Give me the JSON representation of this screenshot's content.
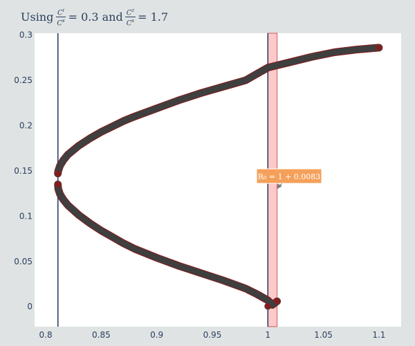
{
  "title_parts": {
    "prefix": "Using",
    "frac1_num": "C",
    "frac1_num_sup": "i",
    "frac1_den": "C",
    "frac1_den_sup": "s",
    "mid": "= 0.3 and",
    "frac2_num": "C",
    "frac2_num_sup": "z",
    "frac2_den": "C",
    "frac2_den_sup": "s",
    "suffix": "= 1.7"
  },
  "chart_data": {
    "type": "scatter",
    "title": "Using Ci/Cs = 0.3 and Cz/Cs = 1.7",
    "xlim": [
      0.79,
      1.12
    ],
    "ylim": [
      -0.022,
      0.302
    ],
    "x_ticks": [
      0.8,
      0.85,
      0.9,
      0.95,
      1,
      1.05,
      1.1
    ],
    "x_tick_labels": [
      "0.8",
      "0.85",
      "0.9",
      "0.95",
      "1",
      "1.05",
      "1.1"
    ],
    "y_ticks": [
      0,
      0.05,
      0.1,
      0.15,
      0.2,
      0.25,
      0.3
    ],
    "y_tick_labels": [
      "0",
      "0.05",
      "0.1",
      "0.15",
      "0.2",
      "0.25",
      "0.3"
    ],
    "grid": false,
    "vertical_lines": [
      {
        "x": 0.811,
        "color": "#2a3f5f"
      },
      {
        "x": 1.0,
        "color": "#2a3f5f"
      }
    ],
    "shaded_band": {
      "x0": 1.0,
      "x1": 1.0083,
      "fill": "#ffc9c9",
      "stroke": "#c85a5a"
    },
    "series": [
      {
        "x": [
          0.811,
          0.8113,
          0.813,
          0.816,
          0.82,
          0.83,
          0.84,
          0.85,
          0.86,
          0.87,
          0.88,
          0.9,
          0.92,
          0.94,
          0.96,
          0.98,
          1.0,
          1.02,
          1.04,
          1.06,
          1.08,
          1.1
        ],
        "y": [
          0.147,
          0.15,
          0.156,
          0.162,
          0.168,
          0.178,
          0.186,
          0.193,
          0.199,
          0.205,
          0.21,
          0.219,
          0.228,
          0.236,
          0.243,
          0.25,
          0.264,
          0.27,
          0.276,
          0.281,
          0.284,
          0.286
        ],
        "color": "#3f3f3f"
      },
      {
        "x": [
          0.811,
          0.8113,
          0.813,
          0.816,
          0.82,
          0.83,
          0.84,
          0.85,
          0.86,
          0.87,
          0.88,
          0.9,
          0.92,
          0.94,
          0.96,
          0.98,
          0.99,
          1.0,
          1.004,
          1.0083
        ],
        "y": [
          0.135,
          0.13,
          0.124,
          0.118,
          0.112,
          0.101,
          0.092,
          0.084,
          0.077,
          0.07,
          0.064,
          0.054,
          0.045,
          0.037,
          0.029,
          0.02,
          0.014,
          0.007,
          0.002,
          0.006
        ],
        "color": "#3f3f3f"
      }
    ],
    "marker_color": "#8b1a1a",
    "highlight_points": [
      [
        0.811,
        0.147
      ],
      [
        0.811,
        0.135
      ],
      [
        1.1,
        0.286
      ],
      [
        1.0083,
        0.006
      ],
      [
        1.0,
        0.0005
      ]
    ],
    "annotation": {
      "text": "R₀ = 1 + 0.0083",
      "x": 1.0083,
      "y": 0.13,
      "bg": "#f5a05a",
      "fg": "#ffffff"
    }
  }
}
